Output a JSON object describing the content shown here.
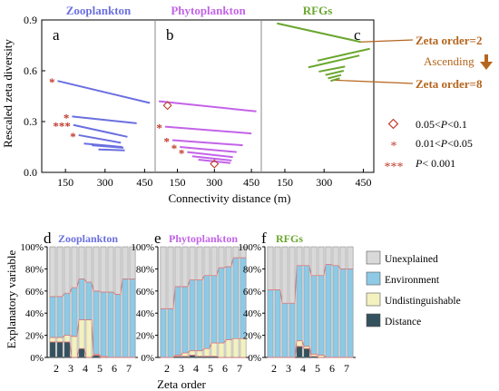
{
  "colors": {
    "zoo": "#6a6fe0",
    "phyto": "#c363e8",
    "rfg": "#6aa62e",
    "sig": "#c0392b",
    "annot": "#b5651d",
    "unexplained": "#d9d9d9",
    "environment": "#8ecae6",
    "undist": "#f3f1c0",
    "distance": "#34515e",
    "bar_outline": "#7a7a7a",
    "trend": "#e07b7b"
  },
  "top": {
    "ylabel": "Rescaled zeta diversity",
    "xlabel": "Connectivity distance (m)",
    "yticks": [
      "0.0",
      "0.3",
      "0.6",
      "0.9"
    ],
    "ylim": [
      0,
      0.9
    ],
    "panels": [
      {
        "letter": "a",
        "title": "Zooplankton",
        "color": "zoo",
        "xlim": [
          60,
          490
        ],
        "xticks": [
          150,
          300,
          450
        ],
        "lines": [
          {
            "x": [
              120,
              470
            ],
            "y": [
              0.54,
              0.41
            ],
            "marker": "*"
          },
          {
            "x": [
              175,
              420
            ],
            "y": [
              0.33,
              0.29
            ],
            "marker": "*"
          },
          {
            "x": [
              180,
              385
            ],
            "y": [
              0.28,
              0.21
            ],
            "marker": "***"
          },
          {
            "x": [
              200,
              360
            ],
            "y": [
              0.22,
              0.175
            ],
            "marker": "*"
          },
          {
            "x": [
              220,
              365
            ],
            "y": [
              0.17,
              0.15
            ],
            "marker": ""
          },
          {
            "x": [
              250,
              370
            ],
            "y": [
              0.16,
              0.145
            ],
            "marker": ""
          },
          {
            "x": [
              275,
              375
            ],
            "y": [
              0.135,
              0.13
            ],
            "marker": ""
          }
        ]
      },
      {
        "letter": "b",
        "title": "Phytoplankton",
        "color": "phyto",
        "xlim": [
          60,
          490
        ],
        "xticks": [
          150,
          300,
          450
        ],
        "lines": [
          {
            "x": [
              75,
              470
            ],
            "y": [
              0.42,
              0.36
            ],
            "marker": ""
          },
          {
            "x": [
              100,
              450
            ],
            "y": [
              0.27,
              0.23
            ],
            "marker": "*"
          },
          {
            "x": [
              130,
              415
            ],
            "y": [
              0.19,
              0.16
            ],
            "marker": "*"
          },
          {
            "x": [
              160,
              390
            ],
            "y": [
              0.15,
              0.12
            ],
            "marker": "*"
          },
          {
            "x": [
              190,
              375
            ],
            "y": [
              0.12,
              0.09
            ],
            "marker": "*"
          },
          {
            "x": [
              210,
              370
            ],
            "y": [
              0.095,
              0.07
            ],
            "marker": ""
          },
          {
            "x": [
              235,
              365
            ],
            "y": [
              0.075,
              0.055
            ],
            "marker": ""
          }
        ],
        "diamonds": [
          {
            "x": 110,
            "y": 0.395
          },
          {
            "x": 300,
            "y": 0.05
          }
        ]
      },
      {
        "letter": "c",
        "title": "RFGs",
        "color": "rfg",
        "xlim": [
          60,
          490
        ],
        "xticks": [
          150,
          300,
          450
        ],
        "lines": [
          {
            "x": [
              120,
              440
            ],
            "y": [
              0.88,
              0.77
            ],
            "marker": ""
          },
          {
            "x": [
              275,
              475
            ],
            "y": [
              0.66,
              0.73
            ],
            "marker": ""
          },
          {
            "x": [
              240,
              435
            ],
            "y": [
              0.62,
              0.69
            ],
            "marker": ""
          },
          {
            "x": [
              280,
              380
            ],
            "y": [
              0.595,
              0.625
            ],
            "marker": ""
          },
          {
            "x": [
              305,
              375
            ],
            "y": [
              0.575,
              0.6
            ],
            "marker": ""
          },
          {
            "x": [
              315,
              365
            ],
            "y": [
              0.555,
              0.575
            ],
            "marker": ""
          },
          {
            "x": [
              325,
              360
            ],
            "y": [
              0.54,
              0.555
            ],
            "marker": ""
          }
        ]
      }
    ],
    "annot": {
      "zeta2": "Zeta order=2",
      "ascending": "Ascending",
      "zeta8": "Zeta order=8"
    },
    "legend": [
      {
        "symbol": "diamond",
        "label_pre": "0.05<",
        "label_it": "P",
        "label_post": "<0.1"
      },
      {
        "symbol": "*",
        "label_pre": "0.01<",
        "label_it": "P",
        "label_post": "<0.05"
      },
      {
        "symbol": "***",
        "label_pre": "",
        "label_it": "P",
        "label_post": "< 0.001"
      }
    ]
  },
  "bottom": {
    "ylabel": "Explanatory variable",
    "xlabel": "Zeta order",
    "yticks": [
      "0%",
      "20%",
      "40%",
      "60%",
      "80%",
      "100%"
    ],
    "categories": [
      "2",
      "3",
      "4",
      "5",
      "6",
      "7"
    ],
    "legend": [
      {
        "key": "unexplained",
        "label": "Unexplained"
      },
      {
        "key": "environment",
        "label": "Environment"
      },
      {
        "key": "undist",
        "label": "Undistinguishable"
      },
      {
        "key": "distance",
        "label": "Distance"
      }
    ],
    "panels": [
      {
        "letter": "d",
        "title": "Zooplankton",
        "color": "zoo",
        "order": [
          "2",
          "2",
          "3",
          "3",
          "4",
          "4",
          "5",
          "5",
          "6",
          "6",
          "7",
          "7"
        ],
        "distance": [
          14,
          14,
          14,
          0,
          8,
          0,
          2,
          0,
          0,
          0,
          0,
          0
        ],
        "undist": [
          4,
          4,
          6,
          19,
          26,
          34,
          1,
          1,
          0,
          0,
          0,
          0
        ],
        "environment": [
          37,
          37,
          38,
          44,
          37,
          34,
          57,
          58,
          59,
          57,
          71,
          71
        ],
        "unexplained": [
          45,
          45,
          42,
          37,
          29,
          32,
          40,
          41,
          41,
          43,
          29,
          29
        ]
      },
      {
        "letter": "e",
        "title": "Phytoplankton",
        "color": "phyto",
        "order": [
          "2",
          "2",
          "3",
          "3",
          "4",
          "4",
          "5",
          "5",
          "6",
          "6",
          "7",
          "7"
        ],
        "distance": [
          0,
          0,
          1,
          1,
          2,
          1,
          1,
          1,
          0,
          0,
          0,
          0
        ],
        "undist": [
          0,
          0,
          1,
          3,
          4,
          5,
          7,
          12,
          13,
          16,
          17,
          17
        ],
        "environment": [
          44,
          44,
          62,
          60,
          64,
          64,
          66,
          61,
          68,
          66,
          73,
          73
        ],
        "unexplained": [
          56,
          56,
          36,
          36,
          30,
          30,
          26,
          26,
          19,
          18,
          10,
          10
        ]
      },
      {
        "letter": "f",
        "title": "RFGs",
        "color": "rfg",
        "order": [
          "2",
          "2",
          "3",
          "3",
          "4",
          "4",
          "5",
          "5",
          "6",
          "6",
          "7",
          "7"
        ],
        "distance": [
          0,
          0,
          0,
          0,
          10,
          8,
          1,
          0,
          0,
          0,
          0,
          0
        ],
        "undist": [
          0,
          0,
          0,
          0,
          5,
          2,
          2,
          2,
          0,
          0,
          0,
          0
        ],
        "environment": [
          61,
          61,
          49,
          49,
          68,
          73,
          71,
          72,
          84,
          83,
          80,
          80
        ],
        "unexplained": [
          39,
          39,
          51,
          51,
          17,
          17,
          26,
          26,
          16,
          17,
          20,
          20
        ]
      }
    ]
  }
}
